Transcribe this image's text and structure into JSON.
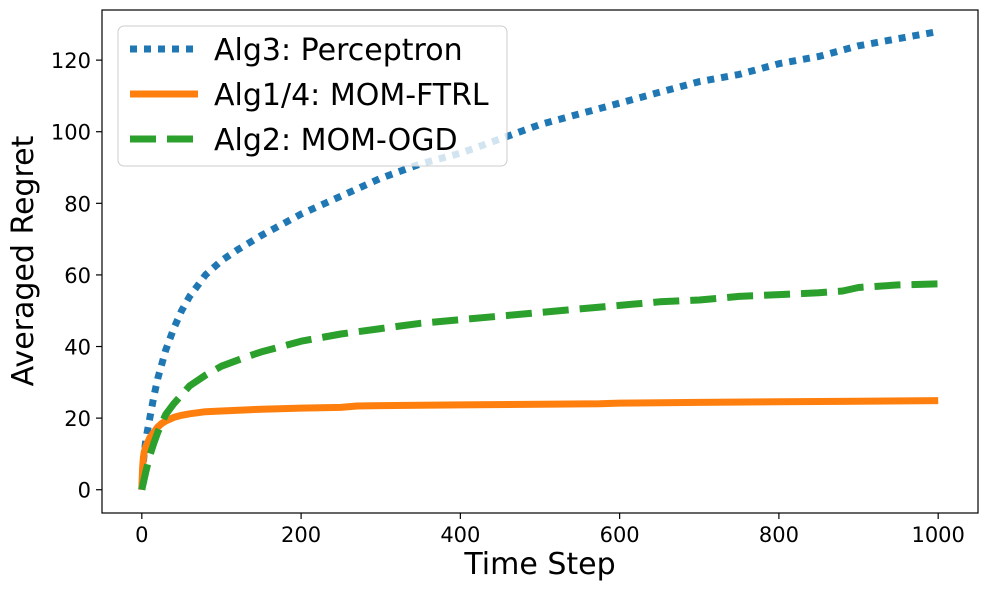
{
  "chart_data": {
    "type": "line",
    "title": "",
    "xlabel": "Time Step",
    "ylabel": "Averaged Regret",
    "xlim": [
      -50,
      1050
    ],
    "ylim": [
      -6.5,
      134
    ],
    "xticks": [
      0,
      200,
      400,
      600,
      800,
      1000
    ],
    "yticks": [
      0,
      20,
      40,
      60,
      80,
      100,
      120
    ],
    "grid": false,
    "legend_location": "top-left",
    "series": [
      {
        "name": "Alg3: Perceptron",
        "color": "#1f77b4",
        "style": "dotted",
        "x": [
          0,
          2,
          5,
          10,
          15,
          20,
          30,
          40,
          50,
          60,
          70,
          80,
          100,
          120,
          150,
          200,
          250,
          300,
          350,
          400,
          450,
          500,
          550,
          600,
          650,
          700,
          750,
          800,
          850,
          900,
          950,
          1000
        ],
        "y": [
          0,
          8,
          14,
          20,
          26,
          31,
          39,
          45,
          50,
          54,
          57,
          60,
          64,
          67,
          71,
          77,
          82,
          87,
          91,
          94,
          98,
          102,
          105,
          108,
          111,
          114,
          116,
          119,
          121,
          124,
          126,
          128
        ]
      },
      {
        "name": "Alg1/4: MOM-FTRL",
        "color": "#ff7f0e",
        "style": "solid",
        "x": [
          0,
          1,
          2,
          3,
          5,
          8,
          10,
          15,
          20,
          25,
          30,
          40,
          50,
          60,
          80,
          100,
          150,
          200,
          250,
          270,
          300,
          400,
          500,
          575,
          600,
          700,
          800,
          900,
          1000
        ],
        "y": [
          0,
          6,
          9,
          10.5,
          12,
          13.5,
          14.5,
          16,
          17.5,
          18.5,
          19.2,
          20.2,
          20.8,
          21.2,
          21.8,
          22,
          22.5,
          22.8,
          23,
          23.4,
          23.5,
          23.7,
          23.9,
          24,
          24.2,
          24.4,
          24.6,
          24.7,
          24.9
        ]
      },
      {
        "name": "Alg2: MOM-OGD",
        "color": "#2ca02c",
        "style": "dashed",
        "x": [
          0,
          5,
          10,
          15,
          20,
          30,
          40,
          50,
          60,
          80,
          100,
          130,
          150,
          200,
          250,
          300,
          350,
          400,
          450,
          500,
          550,
          600,
          650,
          700,
          750,
          800,
          850,
          880,
          900,
          950,
          1000
        ],
        "y": [
          0,
          5,
          9.5,
          13,
          16,
          21,
          24,
          26.5,
          29,
          32,
          34.5,
          37,
          38.5,
          41.5,
          43.5,
          45,
          46.5,
          47.5,
          48.5,
          49.5,
          50.5,
          51.5,
          52.5,
          53,
          54,
          54.5,
          55,
          55.5,
          56.5,
          57.2,
          57.5
        ]
      }
    ]
  }
}
